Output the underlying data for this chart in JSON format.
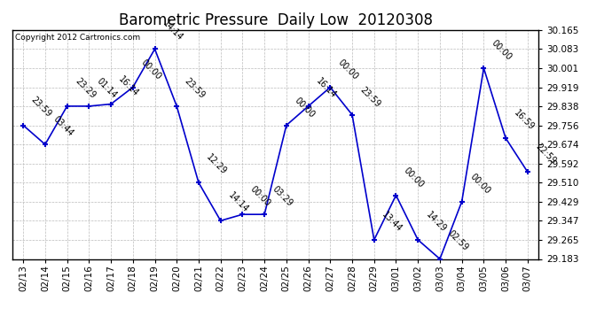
{
  "title": "Barometric Pressure  Daily Low  20120308",
  "copyright": "Copyright 2012 Cartronics.com",
  "x_labels": [
    "02/13",
    "02/14",
    "02/15",
    "02/16",
    "02/17",
    "02/18",
    "02/19",
    "02/20",
    "02/21",
    "02/22",
    "02/23",
    "02/24",
    "02/25",
    "02/26",
    "02/27",
    "02/28",
    "02/29",
    "03/01",
    "03/02",
    "03/03",
    "03/04",
    "03/05",
    "03/06",
    "03/07"
  ],
  "y_values": [
    29.756,
    29.674,
    29.838,
    29.838,
    29.847,
    29.919,
    30.083,
    29.838,
    29.51,
    29.347,
    29.374,
    29.374,
    29.756,
    29.838,
    29.919,
    29.801,
    29.265,
    29.456,
    29.265,
    29.183,
    29.429,
    30.001,
    29.701,
    29.556
  ],
  "point_labels": [
    "23:59",
    "03:44",
    "23:29",
    "01:14",
    "16:14",
    "00:00",
    "14:14",
    "23:59",
    "12:29",
    "14:14",
    "00:00",
    "03:29",
    "00:00",
    "16:14",
    "00:00",
    "23:59",
    "13:44",
    "00:00",
    "14:29",
    "02:59",
    "00:00",
    "00:00",
    "16:59",
    "22:59"
  ],
  "ylim_min": 29.183,
  "ylim_max": 30.165,
  "y_ticks": [
    29.183,
    29.265,
    29.347,
    29.429,
    29.51,
    29.592,
    29.674,
    29.756,
    29.838,
    29.919,
    30.001,
    30.083,
    30.165
  ],
  "line_color": "#0000CC",
  "marker_color": "#0000CC",
  "bg_color": "#FFFFFF",
  "grid_color": "#BBBBBB",
  "title_fontsize": 12,
  "tick_fontsize": 7.5,
  "label_fontsize": 7,
  "copyright_fontsize": 6.5
}
